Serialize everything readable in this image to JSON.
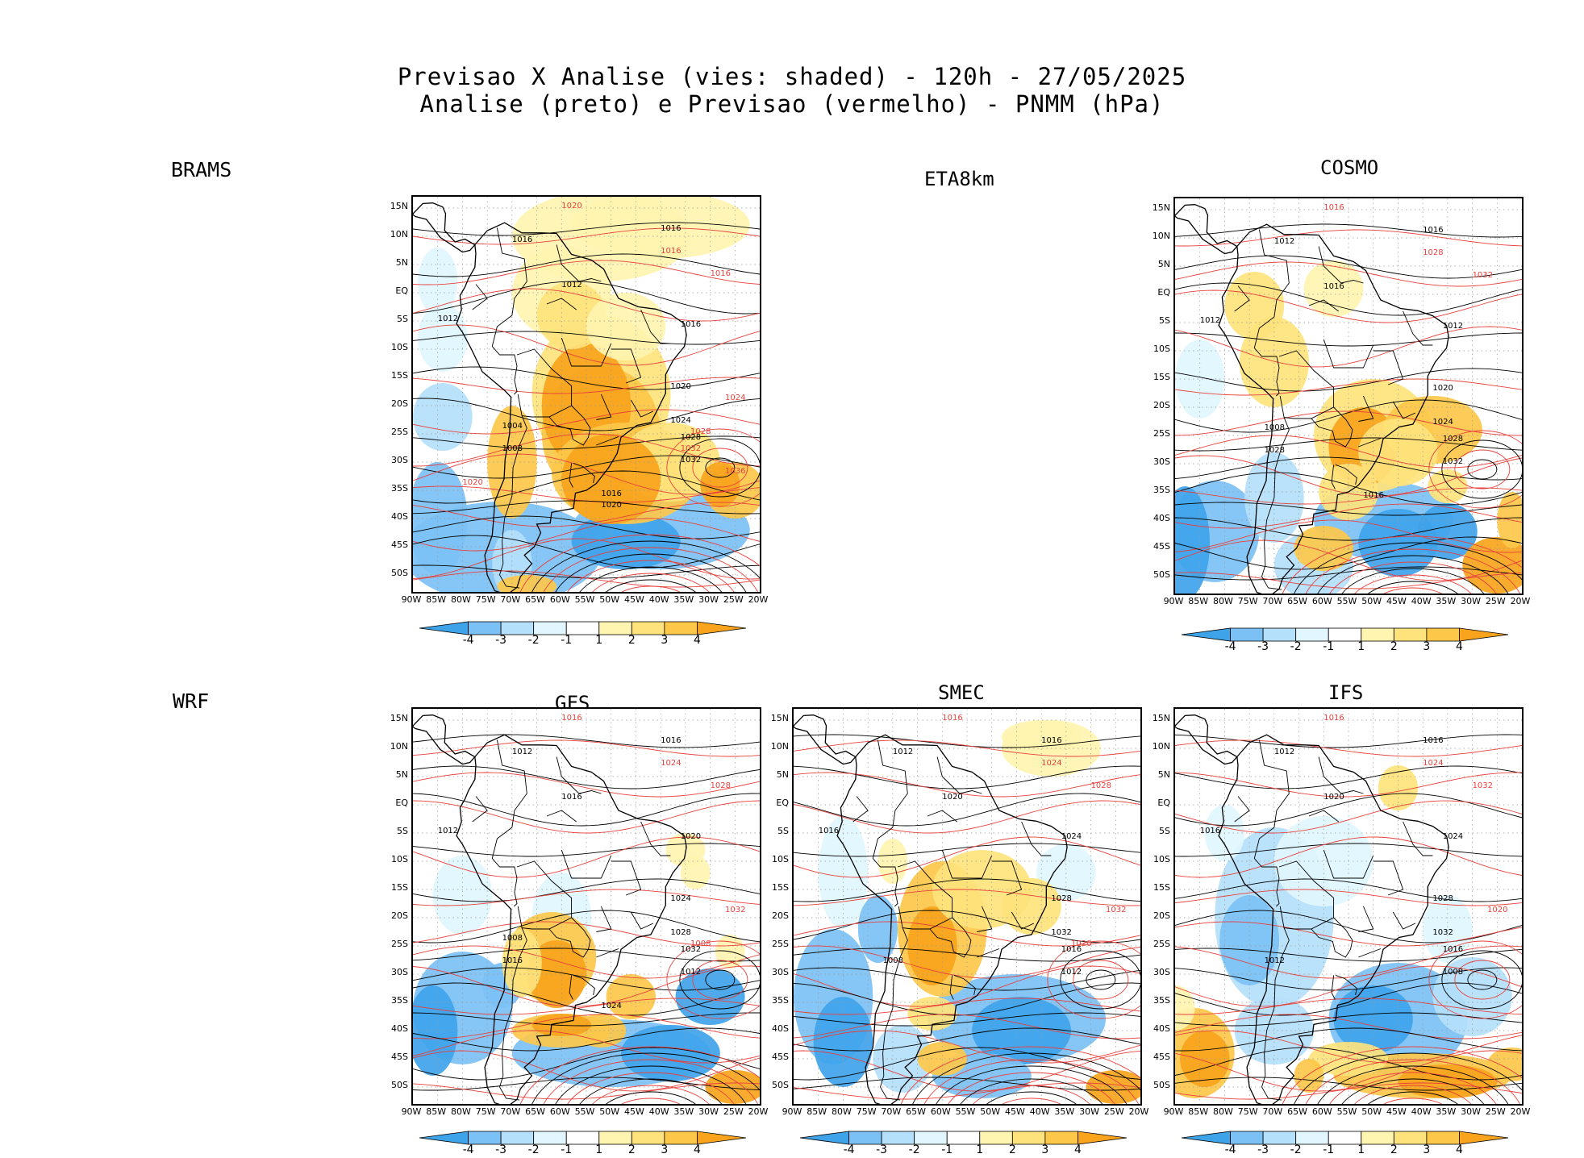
{
  "header": {
    "line1": "Previsao X Analise (vies: shaded) - 120h - 27/05/2025",
    "line2": "Analise (preto) e Previsao (vermelho) - PNMM (hPa)"
  },
  "row_labels": {
    "top": "BRAMS",
    "bottom": "WRF"
  },
  "lat_ticks": [
    "15N",
    "10N",
    "5N",
    "EQ",
    "5S",
    "10S",
    "15S",
    "20S",
    "25S",
    "30S",
    "35S",
    "40S",
    "45S",
    "50S"
  ],
  "lon_ticks": [
    "90W",
    "85W",
    "80W",
    "75W",
    "70W",
    "65W",
    "60W",
    "55W",
    "50W",
    "45W",
    "40W",
    "35W",
    "30W",
    "25W",
    "20W"
  ],
  "colorbar_labels": [
    "-4",
    "-3",
    "-2",
    "-1",
    "1",
    "2",
    "3",
    "4"
  ],
  "colors": {
    "neg4": "#3fa3ea",
    "neg3": "#7cc1f5",
    "neg2": "#b5e0fb",
    "neg1": "#e1f6fe",
    "zero": "#ffffff",
    "pos1": "#fff4b0",
    "pos2": "#fee37c",
    "pos3": "#fdc84a",
    "pos4": "#f9a41c",
    "analysis": "#000000",
    "forecast": "#e8413c"
  },
  "panels": [
    {
      "id": "brams",
      "title": "",
      "isobars": [
        "1016",
        "1016",
        "1012",
        "1012",
        "1016",
        "1020",
        "1024",
        "1028",
        "1032",
        "1008",
        "1004",
        "1016",
        "1020"
      ],
      "fc_isobars": [
        "1020",
        "1016",
        "1016",
        "1024",
        "1028",
        "1032",
        "1036",
        "1020"
      ]
    },
    {
      "id": "eta8km",
      "title": "ETA8km"
    },
    {
      "id": "cosmo",
      "title": "COSMO",
      "isobars": [
        "1012",
        "1016",
        "1012",
        "1016",
        "1012",
        "1020",
        "1024",
        "1028",
        "1032",
        "1028",
        "1008",
        "1016"
      ],
      "fc_isobars": [
        "1016",
        "1028",
        "1032"
      ]
    },
    {
      "id": "gfs",
      "title": "GFS",
      "isobars": [
        "1012",
        "1016",
        "1012",
        "1016",
        "1020",
        "1024",
        "1028",
        "1032",
        "1012",
        "1016",
        "1008",
        "1024"
      ],
      "fc_isobars": [
        "1016",
        "1024",
        "1028",
        "1032",
        "1008"
      ]
    },
    {
      "id": "smec",
      "title": "SMEC",
      "isobars": [
        "1012",
        "1016",
        "1016",
        "1020",
        "1024",
        "1028",
        "1032",
        "1016",
        "1012",
        "1008"
      ],
      "fc_isobars": [
        "1016",
        "1024",
        "1028",
        "1032",
        "1020"
      ]
    },
    {
      "id": "ifs",
      "title": "IFS",
      "isobars": [
        "1012",
        "1016",
        "1016",
        "1020",
        "1024",
        "1028",
        "1032",
        "1016",
        "1008",
        "1012"
      ],
      "fc_isobars": [
        "1016",
        "1024",
        "1032",
        "1020"
      ]
    }
  ]
}
